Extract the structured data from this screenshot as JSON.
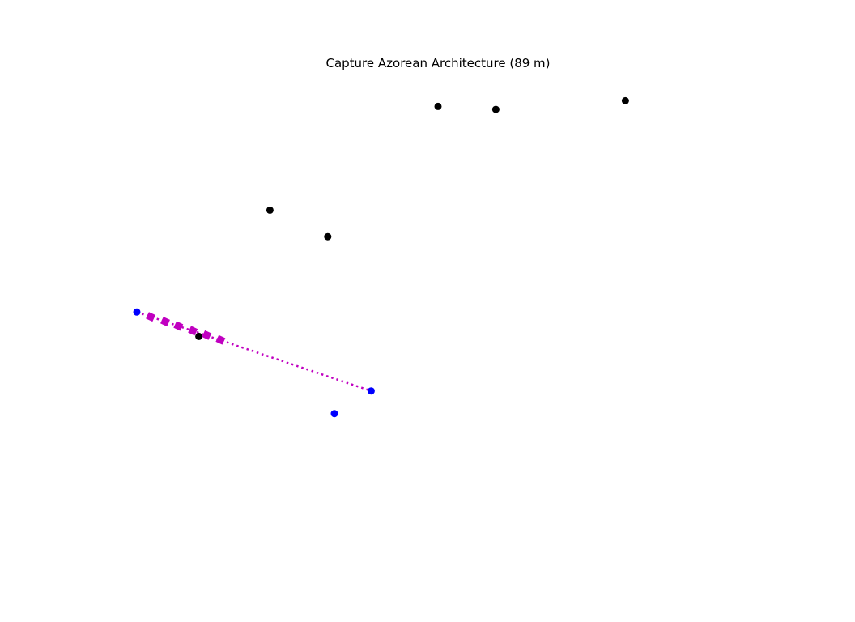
{
  "chart_data": {
    "type": "scatter",
    "title": "Capture Azorean Architecture (89 m)",
    "xlabel": "",
    "ylabel": "",
    "axes_visible": false,
    "grid": false,
    "xlim": [
      0,
      100
    ],
    "ylim": [
      0,
      100
    ],
    "series": [
      {
        "color": "#000000",
        "marker": "circle",
        "points": [
          {
            "x": 50.0,
            "y": 97.7
          },
          {
            "x": 59.6,
            "y": 97.0
          },
          {
            "x": 81.1,
            "y": 99.0
          },
          {
            "x": 22.1,
            "y": 73.9
          },
          {
            "x": 31.7,
            "y": 67.8
          },
          {
            "x": 10.3,
            "y": 44.9
          }
        ]
      },
      {
        "color": "#0000ff",
        "marker": "circle",
        "points": [
          {
            "x": 0.0,
            "y": 50.5
          },
          {
            "x": 38.9,
            "y": 32.4
          },
          {
            "x": 32.8,
            "y": 27.2
          }
        ]
      },
      {
        "color": "#c000c0",
        "marker": "square",
        "linestyle": "dotted",
        "points": [
          {
            "x": 0.0,
            "y": 50.5
          },
          {
            "x": 38.9,
            "y": 32.4
          }
        ],
        "square_markers": [
          {
            "x": 2.3,
            "y": 49.4
          },
          {
            "x": 4.7,
            "y": 48.3
          },
          {
            "x": 6.9,
            "y": 47.3
          },
          {
            "x": 9.3,
            "y": 46.2
          },
          {
            "x": 11.6,
            "y": 45.2
          },
          {
            "x": 13.9,
            "y": 44.1
          }
        ]
      }
    ]
  }
}
